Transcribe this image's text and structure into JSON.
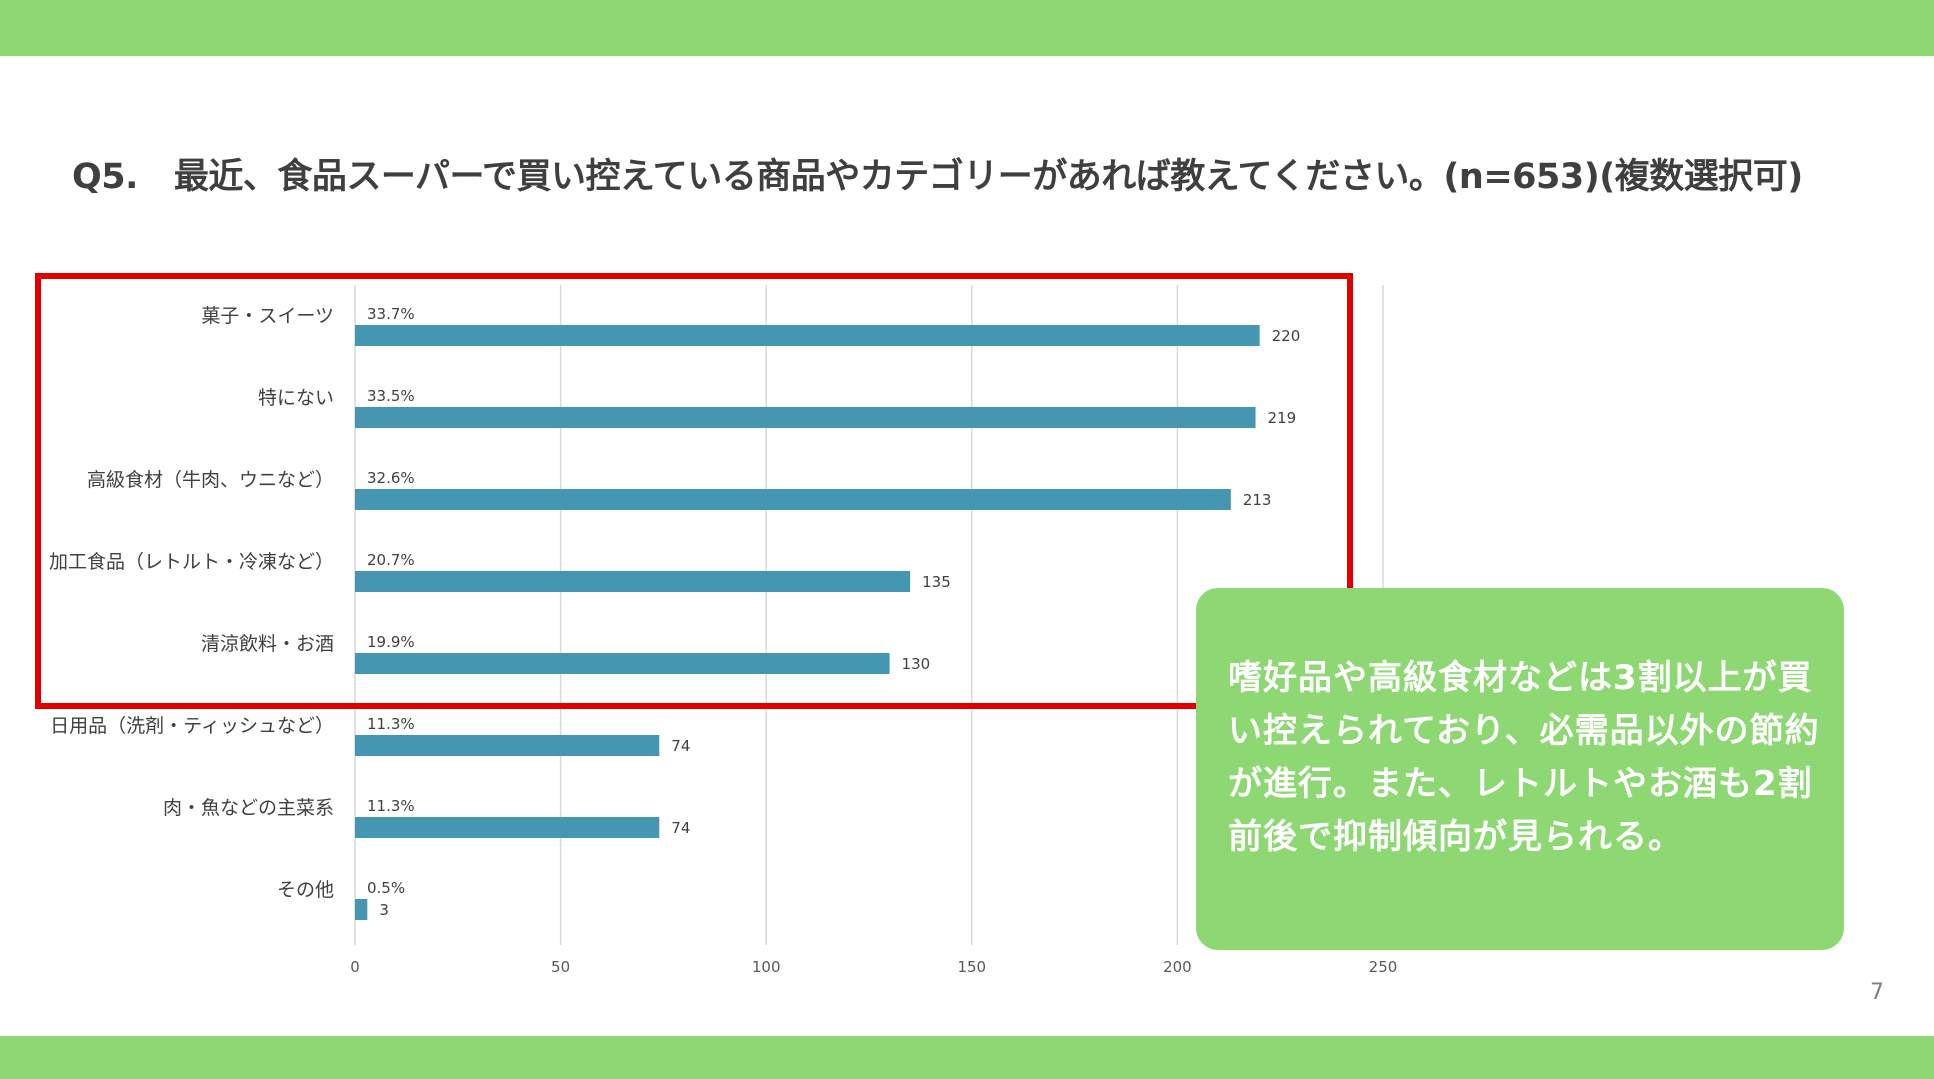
{
  "slide": {
    "question_label": "Q5.",
    "question_text": "最近、食品スーパーで買い控えている商品やカテゴリーがあれば教えてください。(n=653)(複数選択可)",
    "callout": "嗜好品や高級食材などは3割以上が買い控えられており、必需品以外の節約が進行。また、レトルトやお酒も2割前後で抑制傾向が見られる。",
    "page_number": "7"
  },
  "colors": {
    "band": "#8ed873",
    "bar": "#4596b0",
    "highlight_box": "#e00000",
    "grid": "#d9d9d9",
    "callout_bg": "#8ed873"
  },
  "chart_data": {
    "type": "bar",
    "orientation": "horizontal",
    "categories": [
      "菓子・スイーツ",
      "特にない",
      "高級食材（牛肉、ウニなど）",
      "加工食品（レトルト・冷凍など）",
      "清涼飲料・お酒",
      "日用品（洗剤・ティッシュなど）",
      "肉・魚などの主菜系",
      "その他"
    ],
    "values": [
      220,
      219,
      213,
      135,
      130,
      74,
      74,
      3
    ],
    "percent_labels": [
      "33.7%",
      "33.5%",
      "32.6%",
      "20.7%",
      "19.9%",
      "11.3%",
      "11.3%",
      "0.5%"
    ],
    "xlim": [
      0,
      250
    ],
    "xticks": [
      0,
      50,
      100,
      150,
      200,
      250
    ],
    "grid": "vertical",
    "highlighted_categories": [
      0,
      1,
      2,
      3,
      4
    ]
  }
}
